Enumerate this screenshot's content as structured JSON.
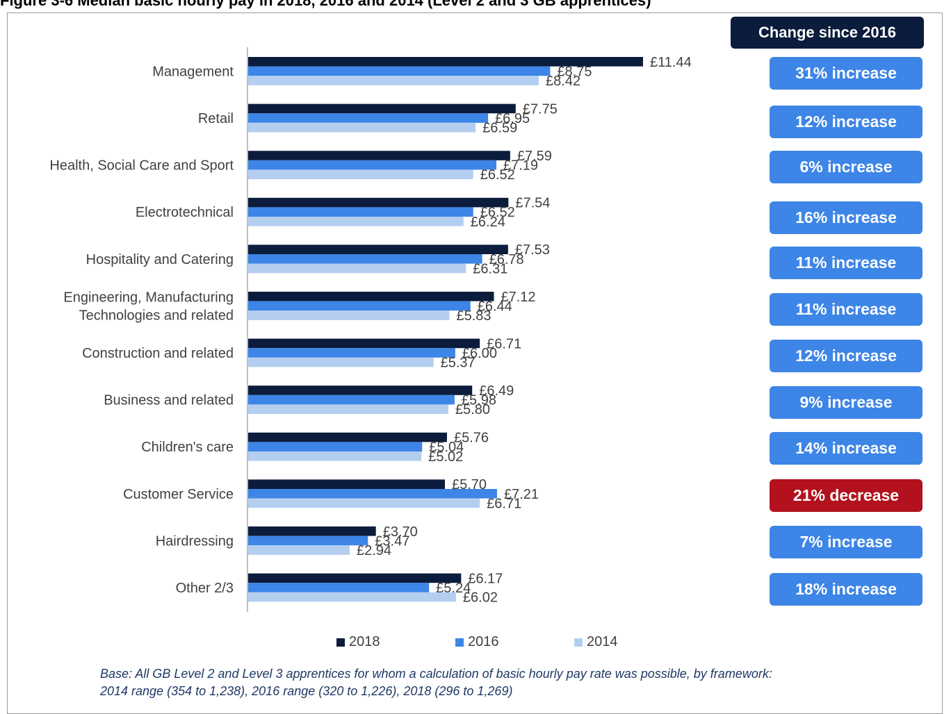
{
  "figure_title": "Figure 3-6 Median basic hourly pay in 2018, 2016 and 2014 (Level 2 and 3 GB apprentices)",
  "change_header": "Change since 2016",
  "footnote": {
    "line1": "Base: All GB Level 2 and Level 3 apprentices for whom a calculation of basic hourly pay rate was possible, by framework:",
    "line2": "2014 range (354 to 1,238), 2016 range (320 to 1,226), 2018 (296 to 1,269)"
  },
  "colors": {
    "s2018": "#0c1c3c",
    "s2016": "#3d85e6",
    "s2014": "#b4cef0",
    "increase": "#3d85e6",
    "decrease": "#b3111d"
  },
  "chart_data": {
    "type": "bar",
    "orientation": "horizontal",
    "categories": [
      "Management",
      "Retail",
      "Health, Social Care and Sport",
      "Electrotechnical",
      "Hospitality and Catering",
      "Engineering, Manufacturing Technologies and related",
      "Construction and related",
      "Business and related",
      "Children's care",
      "Customer Service",
      "Hairdressing",
      "Other 2/3"
    ],
    "category_lines": [
      [
        "Management"
      ],
      [
        "Retail"
      ],
      [
        "Health, Social Care and Sport"
      ],
      [
        "Electrotechnical"
      ],
      [
        "Hospitality and Catering"
      ],
      [
        "Engineering, Manufacturing",
        "Technologies and related"
      ],
      [
        "Construction and related"
      ],
      [
        "Business and related"
      ],
      [
        "Children's care"
      ],
      [
        "Customer Service"
      ],
      [
        "Hairdressing"
      ],
      [
        "Other 2/3"
      ]
    ],
    "series": [
      {
        "name": "2018",
        "values": [
          11.44,
          7.75,
          7.59,
          7.54,
          7.53,
          7.12,
          6.71,
          6.49,
          5.76,
          5.7,
          3.7,
          6.17
        ],
        "labels": [
          "£11.44",
          "£7.75",
          "£7.59",
          "£7.54",
          "£7.53",
          "£7.12",
          "£6.71",
          "£6.49",
          "£5.76",
          "£5.70",
          "£3.70",
          "£6.17"
        ]
      },
      {
        "name": "2016",
        "values": [
          8.75,
          6.95,
          7.19,
          6.52,
          6.78,
          6.44,
          6.0,
          5.98,
          5.04,
          7.21,
          3.47,
          5.24
        ],
        "labels": [
          "£8.75",
          "£6.95",
          "£7.19",
          "£6.52",
          "£6.78",
          "£6.44",
          "£6.00",
          "£5.98",
          "£5.04",
          "£7.21",
          "£3.47",
          "£5.24"
        ]
      },
      {
        "name": "2014",
        "values": [
          8.42,
          6.59,
          6.52,
          6.24,
          6.31,
          5.83,
          5.37,
          5.8,
          5.02,
          6.71,
          2.94,
          6.02
        ],
        "labels": [
          "£8.42",
          "£6.59",
          "£6.52",
          "£6.24",
          "£6.31",
          "£5.83",
          "£5.37",
          "£5.80",
          "£5.02",
          "£6.71",
          "£2.94",
          "£6.02"
        ]
      }
    ],
    "xlim": [
      0,
      13.5
    ],
    "legend_position": "bottom",
    "changes": [
      {
        "text": "31% increase",
        "kind": "increase"
      },
      {
        "text": "12% increase",
        "kind": "increase"
      },
      {
        "text": "6% increase",
        "kind": "increase"
      },
      {
        "text": "16% increase",
        "kind": "increase"
      },
      {
        "text": "11% increase",
        "kind": "increase"
      },
      {
        "text": "11% increase",
        "kind": "increase"
      },
      {
        "text": "12% increase",
        "kind": "increase"
      },
      {
        "text": "9% increase",
        "kind": "increase"
      },
      {
        "text": "14% increase",
        "kind": "increase"
      },
      {
        "text": "21% decrease",
        "kind": "decrease"
      },
      {
        "text": "7% increase",
        "kind": "increase"
      },
      {
        "text": "18% increase",
        "kind": "increase"
      }
    ]
  }
}
